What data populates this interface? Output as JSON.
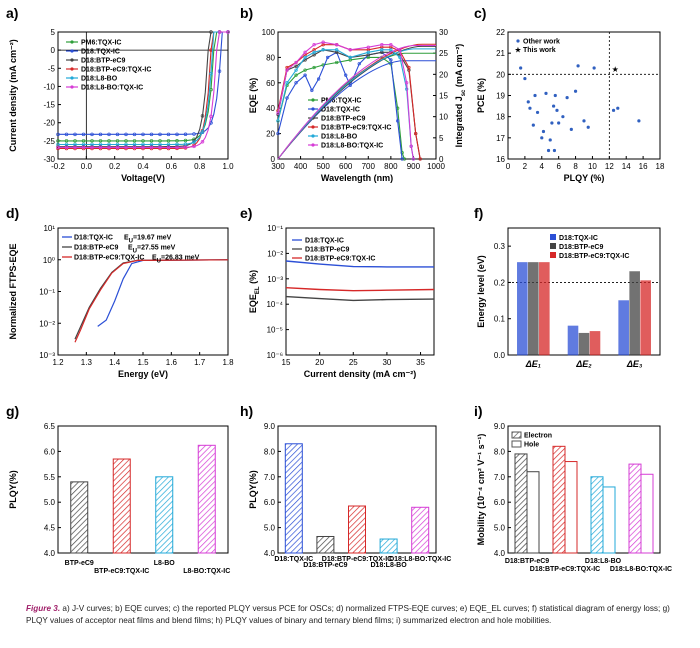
{
  "caption": {
    "figure_label": "Figure 3.",
    "text": "a) J-V curves; b) EQE curves; c) the reported PLQY versus PCE for OSCs; d) normalized FTPS-EQE curves; e) EQE_EL curves; f) statistical diagram of energy loss; g) PLQY values of acceptor neat films and blend films; h) PLQY values of binary and ternary blend films; i) summarized electron and hole mobilities."
  },
  "colors": {
    "pm6": "#2e9e3a",
    "tqx": "#2b4fd6",
    "btp": "#444444",
    "tern": "#d62828",
    "l8": "#22a9d8",
    "l8tqx": "#d63cd6",
    "other": "#3060c0",
    "star": "#d62828"
  },
  "chart_data": [
    {
      "id": "a",
      "panel_label": "a)",
      "type": "line",
      "xlabel": "Voltage(V)",
      "ylabel": "Current density (mA cm⁻²)",
      "xlim": [
        -0.2,
        1.0
      ],
      "ylim": [
        -30,
        5
      ],
      "xticks": [
        "-0.2",
        "0.0",
        "0.2",
        "0.4",
        "0.6",
        "0.8",
        "1.0"
      ],
      "yticks": [
        "5",
        "0",
        "-5",
        "-10",
        "-15",
        "-20",
        "-25",
        "-30"
      ],
      "series": [
        {
          "name": "PM6:TQX-IC",
          "jsc": -25.0,
          "voc": 0.9,
          "color_key": "pm6"
        },
        {
          "name": "D18:TQX-IC",
          "jsc": -23.2,
          "voc": 0.95,
          "color_key": "tqx"
        },
        {
          "name": "D18:BTP-eC9",
          "jsc": -26.6,
          "voc": 0.86,
          "color_key": "btp"
        },
        {
          "name": "D18:BTP-eC9:TQX-IC",
          "jsc": -27.1,
          "voc": 0.88,
          "color_key": "tern"
        },
        {
          "name": "D18:L8-BO",
          "jsc": -26.0,
          "voc": 0.89,
          "color_key": "l8"
        },
        {
          "name": "D18:L8-BO:TQX-IC",
          "jsc": -26.8,
          "voc": 0.92,
          "color_key": "l8tqx"
        }
      ]
    },
    {
      "id": "b",
      "panel_label": "b)",
      "type": "line",
      "xlabel": "Wavelength (nm)",
      "ylabel": "EQE (%)",
      "y2label": "Integrated J",
      "y2label_sub": "sc",
      "y2label_unit": " (mA cm⁻²)",
      "xlim": [
        300,
        1000
      ],
      "ylim": [
        0,
        100
      ],
      "y2lim": [
        0,
        30
      ],
      "xticks": [
        "300",
        "400",
        "500",
        "600",
        "700",
        "800",
        "900",
        "1000"
      ],
      "yticks": [
        "0",
        "20",
        "40",
        "60",
        "80",
        "100"
      ],
      "y2ticks": [
        "0",
        "5",
        "10",
        "15",
        "20",
        "25",
        "30"
      ],
      "series": [
        {
          "name": "PM6:TQX-IC",
          "color_key": "pm6",
          "eqe": [
            [
              300,
              30
            ],
            [
              340,
              58
            ],
            [
              380,
              66
            ],
            [
              420,
              70
            ],
            [
              460,
              72
            ],
            [
              500,
              74
            ],
            [
              560,
              76
            ],
            [
              620,
              78
            ],
            [
              700,
              80
            ],
            [
              760,
              80
            ],
            [
              800,
              75
            ],
            [
              830,
              40
            ],
            [
              850,
              5
            ],
            [
              860,
              0
            ]
          ],
          "jsc": 25.0,
          "end": 860
        },
        {
          "name": "D18:TQX-IC",
          "color_key": "tqx",
          "eqe": [
            [
              300,
              20
            ],
            [
              340,
              48
            ],
            [
              380,
              60
            ],
            [
              420,
              66
            ],
            [
              450,
              54
            ],
            [
              480,
              63
            ],
            [
              520,
              80
            ],
            [
              560,
              84
            ],
            [
              600,
              66
            ],
            [
              620,
              58
            ],
            [
              660,
              75
            ],
            [
              700,
              82
            ],
            [
              760,
              84
            ],
            [
              800,
              78
            ],
            [
              830,
              30
            ],
            [
              850,
              0
            ]
          ],
          "jsc": 23.2,
          "end": 850
        },
        {
          "name": "D18:BTP-eC9",
          "color_key": "btp",
          "eqe": [
            [
              300,
              35
            ],
            [
              340,
              70
            ],
            [
              380,
              73
            ],
            [
              420,
              78
            ],
            [
              460,
              82
            ],
            [
              500,
              86
            ],
            [
              560,
              84
            ],
            [
              620,
              80
            ],
            [
              700,
              82
            ],
            [
              760,
              84
            ],
            [
              800,
              84
            ],
            [
              840,
              82
            ],
            [
              880,
              70
            ],
            [
              910,
              20
            ],
            [
              930,
              0
            ]
          ],
          "jsc": 26.6,
          "end": 930
        },
        {
          "name": "D18:BTP-eC9:TQX-IC",
          "color_key": "tern",
          "eqe": [
            [
              300,
              38
            ],
            [
              340,
              72
            ],
            [
              380,
              76
            ],
            [
              420,
              82
            ],
            [
              460,
              86
            ],
            [
              500,
              90
            ],
            [
              560,
              90
            ],
            [
              620,
              86
            ],
            [
              700,
              86
            ],
            [
              760,
              88
            ],
            [
              800,
              88
            ],
            [
              840,
              85
            ],
            [
              880,
              72
            ],
            [
              910,
              20
            ],
            [
              930,
              0
            ]
          ],
          "jsc": 27.1,
          "end": 930
        },
        {
          "name": "D18:L8-BO",
          "color_key": "l8",
          "eqe": [
            [
              300,
              30
            ],
            [
              340,
              60
            ],
            [
              380,
              70
            ],
            [
              420,
              80
            ],
            [
              460,
              84
            ],
            [
              500,
              86
            ],
            [
              560,
              86
            ],
            [
              620,
              80
            ],
            [
              700,
              84
            ],
            [
              760,
              86
            ],
            [
              800,
              86
            ],
            [
              840,
              80
            ],
            [
              870,
              55
            ],
            [
              890,
              10
            ],
            [
              900,
              0
            ]
          ],
          "jsc": 26.0,
          "end": 900
        },
        {
          "name": "D18:L8-BO:TQX-IC",
          "color_key": "l8tqx",
          "eqe": [
            [
              300,
              36
            ],
            [
              340,
              70
            ],
            [
              380,
              76
            ],
            [
              420,
              84
            ],
            [
              460,
              90
            ],
            [
              500,
              92
            ],
            [
              560,
              90
            ],
            [
              620,
              86
            ],
            [
              700,
              88
            ],
            [
              760,
              90
            ],
            [
              800,
              90
            ],
            [
              840,
              86
            ],
            [
              870,
              60
            ],
            [
              890,
              10
            ],
            [
              900,
              0
            ]
          ],
          "jsc": 26.8,
          "end": 900
        }
      ]
    },
    {
      "id": "c",
      "panel_label": "c)",
      "type": "scatter",
      "xlabel": "PLQY (%)",
      "ylabel": "PCE (%)",
      "xlim": [
        0,
        18
      ],
      "ylim": [
        16,
        22
      ],
      "xticks": [
        "0",
        "2",
        "4",
        "6",
        "8",
        "10",
        "12",
        "14",
        "16",
        "18"
      ],
      "yticks": [
        "16",
        "17",
        "18",
        "19",
        "20",
        "21",
        "22"
      ],
      "guides": {
        "x": 12,
        "y": 20
      },
      "legend": [
        "Other work",
        "This work"
      ],
      "other_points": [
        [
          1.5,
          20.3
        ],
        [
          2.0,
          19.8
        ],
        [
          2.4,
          18.7
        ],
        [
          2.6,
          18.4
        ],
        [
          3.0,
          17.6
        ],
        [
          3.2,
          19.0
        ],
        [
          3.5,
          18.2
        ],
        [
          4.0,
          17.0
        ],
        [
          4.2,
          17.3
        ],
        [
          4.5,
          19.1
        ],
        [
          5.0,
          16.9
        ],
        [
          5.2,
          17.7
        ],
        [
          5.4,
          18.5
        ],
        [
          5.6,
          19.0
        ],
        [
          5.8,
          18.3
        ],
        [
          6.0,
          17.7
        ],
        [
          6.5,
          18.0
        ],
        [
          7.0,
          18.9
        ],
        [
          7.5,
          17.4
        ],
        [
          8.0,
          19.2
        ],
        [
          8.3,
          20.4
        ],
        [
          9.0,
          17.8
        ],
        [
          9.5,
          17.5
        ],
        [
          10.2,
          20.3
        ],
        [
          4.8,
          16.4
        ],
        [
          5.5,
          16.4
        ],
        [
          12.5,
          18.3
        ],
        [
          13.0,
          18.4
        ],
        [
          15.5,
          17.8
        ]
      ],
      "this_work": [
        12.7,
        20.25
      ]
    },
    {
      "id": "d",
      "panel_label": "d)",
      "type": "line",
      "xlabel": "Energy (eV)",
      "ylabel": "Normalized FTPS-EQE",
      "xlim": [
        1.2,
        1.8
      ],
      "ylim_log": [
        -3,
        1
      ],
      "xticks": [
        "1.2",
        "1.3",
        "1.4",
        "1.5",
        "1.6",
        "1.7",
        "1.8"
      ],
      "yticks": [
        "10⁻³",
        "10⁻²",
        "10⁻¹",
        "10⁰",
        "10¹"
      ],
      "series": [
        {
          "name": "D18:TQX-IC",
          "eu": "E",
          "eu_sub": "U",
          "eu_val": "=19.67 meV",
          "color_key": "tqx",
          "points": [
            [
              1.34,
              -2.1
            ],
            [
              1.37,
              -1.9
            ],
            [
              1.4,
              -1.3
            ],
            [
              1.43,
              -0.6
            ],
            [
              1.46,
              -0.12
            ],
            [
              1.5,
              -0.02
            ],
            [
              1.8,
              0
            ]
          ]
        },
        {
          "name": "D18:BTP-eC9",
          "eu": "E",
          "eu_sub": "U",
          "eu_val": "=27.55 meV",
          "color_key": "btp",
          "points": [
            [
              1.26,
              -2.5
            ],
            [
              1.28,
              -2.1
            ],
            [
              1.31,
              -1.5
            ],
            [
              1.35,
              -0.9
            ],
            [
              1.39,
              -0.4
            ],
            [
              1.43,
              -0.1
            ],
            [
              1.48,
              -0.02
            ],
            [
              1.8,
              0
            ]
          ]
        },
        {
          "name": "D18:BTP-eC9:TQX-IC",
          "eu": "E",
          "eu_sub": "U",
          "eu_val": "=26.83 meV",
          "color_key": "tern",
          "points": [
            [
              1.26,
              -2.6
            ],
            [
              1.28,
              -2.2
            ],
            [
              1.31,
              -1.55
            ],
            [
              1.35,
              -0.95
            ],
            [
              1.39,
              -0.42
            ],
            [
              1.43,
              -0.12
            ],
            [
              1.48,
              -0.02
            ],
            [
              1.8,
              0
            ]
          ]
        }
      ]
    },
    {
      "id": "e",
      "panel_label": "e)",
      "type": "line",
      "xlabel": "Current density (mA cm⁻²)",
      "ylabel": "EQE",
      "ylabel_sub": "EL",
      "ylabel_unit": " (%)",
      "xlim": [
        15,
        37
      ],
      "ylim_log": [
        -6,
        -1
      ],
      "xticks": [
        "15",
        "20",
        "25",
        "30",
        "35"
      ],
      "yticks": [
        "10⁻⁶",
        "10⁻⁵",
        "10⁻⁴",
        "10⁻³",
        "10⁻²",
        "10⁻¹"
      ],
      "series": [
        {
          "name": "D18:TQX-IC",
          "color_key": "tqx",
          "points": [
            [
              15,
              -2.3
            ],
            [
              20,
              -2.42
            ],
            [
              25,
              -2.52
            ],
            [
              30,
              -2.53
            ],
            [
              37,
              -2.53
            ]
          ]
        },
        {
          "name": "D18:BTP-eC9",
          "color_key": "btp",
          "points": [
            [
              15,
              -3.7
            ],
            [
              20,
              -3.78
            ],
            [
              25,
              -3.85
            ],
            [
              30,
              -3.82
            ],
            [
              37,
              -3.8
            ]
          ]
        },
        {
          "name": "D18:BTP-eC9:TQX-IC",
          "color_key": "tern",
          "points": [
            [
              15,
              -3.35
            ],
            [
              20,
              -3.42
            ],
            [
              25,
              -3.47
            ],
            [
              30,
              -3.45
            ],
            [
              37,
              -3.42
            ]
          ]
        }
      ]
    },
    {
      "id": "f",
      "panel_label": "f)",
      "type": "bar",
      "ylabel": "Energy level (eV)",
      "ylim": [
        0,
        0.35
      ],
      "yticks": [
        "0.0",
        "0.1",
        "0.2",
        "0.3"
      ],
      "categories": [
        "ΔE₁",
        "ΔE₂",
        "ΔE₃"
      ],
      "guide_y": 0.2,
      "series": [
        {
          "name": "D18:TQX-IC",
          "color_key": "tqx",
          "values": [
            0.255,
            0.08,
            0.15
          ]
        },
        {
          "name": "D18:BTP-eC9",
          "color_key": "btp",
          "values": [
            0.255,
            0.06,
            0.23
          ]
        },
        {
          "name": "D18:BTP-eC9:TQX-IC",
          "color_key": "tern",
          "values": [
            0.255,
            0.065,
            0.205
          ]
        }
      ]
    },
    {
      "id": "g",
      "panel_label": "g)",
      "type": "bar",
      "ylabel": "PLQY(%)",
      "ylim": [
        4.0,
        6.5
      ],
      "yticks": [
        "4.0",
        "4.5",
        "5.0",
        "5.5",
        "6.0",
        "6.5"
      ],
      "categories": [
        "BTP-eC9",
        "BTP-eC9:TQX-IC",
        "L8-BO",
        "L8-BO:TQX-IC"
      ],
      "values": [
        5.4,
        5.85,
        5.5,
        6.12
      ],
      "color_keys": [
        "btp",
        "tern",
        "l8",
        "l8tqx"
      ]
    },
    {
      "id": "h",
      "panel_label": "h)",
      "type": "bar",
      "ylabel": "PLQY(%)",
      "ylim": [
        4.0,
        9.0
      ],
      "yticks": [
        "4.0",
        "5.0",
        "6.0",
        "7.0",
        "8.0",
        "9.0"
      ],
      "categories": [
        "D18:TQX-IC",
        "D18:BTP-eC9",
        "D18:BTP-eC9:TQX-IC",
        "D18:L8-BO",
        "D18:L8-BO:TQX-IC"
      ],
      "values": [
        8.3,
        4.65,
        5.85,
        4.55,
        5.8
      ],
      "color_keys": [
        "tqx",
        "btp",
        "tern",
        "l8",
        "l8tqx"
      ]
    },
    {
      "id": "i",
      "panel_label": "i)",
      "type": "bar",
      "ylabel": "Mobility (10⁻⁴ cm² V⁻¹ s⁻¹)",
      "ylim": [
        4.0,
        9.0
      ],
      "yticks": [
        "4.0",
        "5.0",
        "6.0",
        "7.0",
        "8.0",
        "9.0"
      ],
      "categories": [
        "D18:BTP-eC9",
        "D18:BTP-eC9:TQX-IC",
        "D18:L8-BO",
        "D18:L8-BO:TQX-IC"
      ],
      "legend": [
        "Electron",
        "Hole"
      ],
      "series": [
        {
          "name": "Electron",
          "values": [
            7.9,
            8.2,
            7.0,
            7.5
          ]
        },
        {
          "name": "Hole",
          "values": [
            7.2,
            7.6,
            6.6,
            7.1
          ]
        }
      ],
      "color_keys": [
        "btp",
        "tern",
        "l8",
        "l8tqx"
      ]
    }
  ]
}
